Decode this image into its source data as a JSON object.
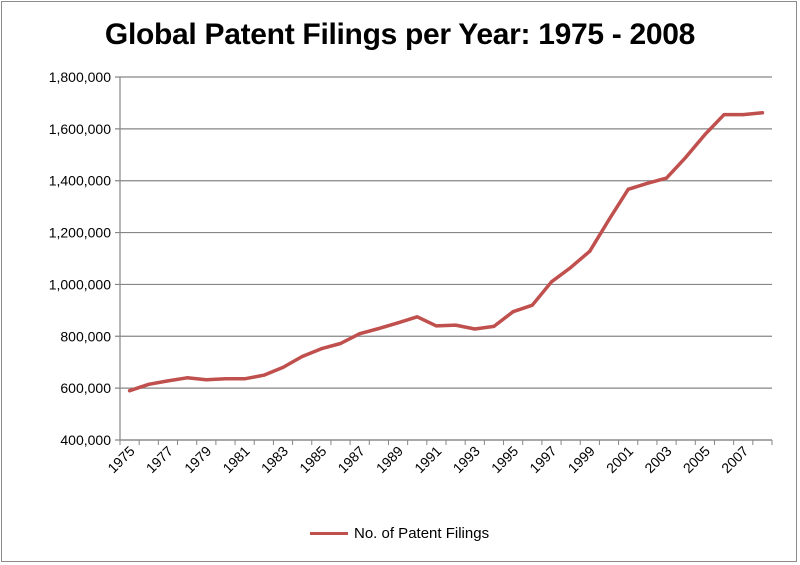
{
  "chart_data": {
    "type": "line",
    "title": "Global Patent Filings per Year: 1975 - 2008",
    "xlabel": "",
    "ylabel": "",
    "ylim": [
      400000,
      1800000
    ],
    "yticks": [
      400000,
      600000,
      800000,
      1000000,
      1200000,
      1400000,
      1600000,
      1800000
    ],
    "ytick_labels": [
      "400,000",
      "600,000",
      "800,000",
      "1,000,000",
      "1,200,000",
      "1,400,000",
      "1,600,000",
      "1,800,000"
    ],
    "x": [
      1975,
      1976,
      1977,
      1978,
      1979,
      1980,
      1981,
      1982,
      1983,
      1984,
      1985,
      1986,
      1987,
      1988,
      1989,
      1990,
      1991,
      1992,
      1993,
      1994,
      1995,
      1996,
      1997,
      1998,
      1999,
      2000,
      2001,
      2002,
      2003,
      2004,
      2005,
      2006,
      2007,
      2008
    ],
    "xtick_labels": [
      "1975",
      "1977",
      "1979",
      "1981",
      "1983",
      "1985",
      "1987",
      "1989",
      "1991",
      "1993",
      "1995",
      "1997",
      "1999",
      "2001",
      "2003",
      "2005",
      "2007"
    ],
    "xtick_years": [
      1975,
      1977,
      1979,
      1981,
      1983,
      1985,
      1987,
      1989,
      1991,
      1993,
      1995,
      1997,
      1999,
      2001,
      2003,
      2005,
      2007
    ],
    "grid": true,
    "legend_position": "bottom",
    "series": [
      {
        "name": "No. of Patent Filings",
        "color": "#c0504d",
        "values": [
          590000,
          615000,
          628000,
          640000,
          632000,
          636000,
          636000,
          650000,
          680000,
          722000,
          752000,
          772000,
          810000,
          830000,
          852000,
          875000,
          840000,
          843000,
          828000,
          838000,
          895000,
          920000,
          1010000,
          1065000,
          1128000,
          1250000,
          1367000,
          1390000,
          1410000,
          1490000,
          1578000,
          1655000,
          1655000,
          1662000
        ]
      }
    ]
  }
}
